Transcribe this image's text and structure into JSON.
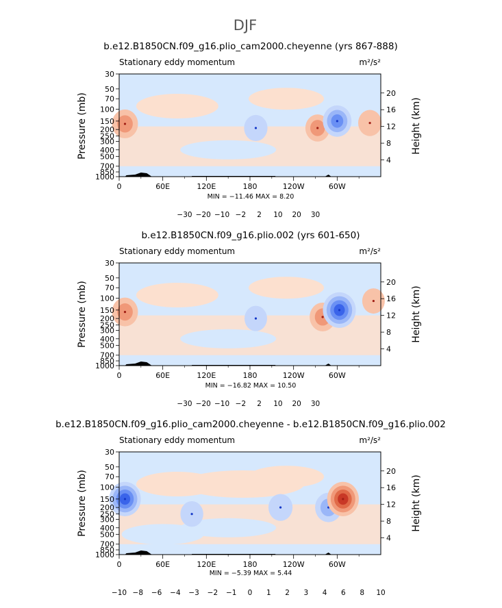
{
  "page_title": "DJF",
  "colors": {
    "blues": [
      "#0a1a6e",
      "#1538c8",
      "#3a64ea",
      "#6a90f4",
      "#9ab6f8",
      "#c4d6fb",
      "#d6e8fd"
    ],
    "reds": [
      "#fce0cf",
      "#f8c2a8",
      "#f09878",
      "#e06a48",
      "#c83826",
      "#a01e14",
      "#6e0a08"
    ],
    "terrain": "#000000"
  },
  "chart_data": [
    {
      "type": "heatmap",
      "title": "b.e12.B1850CN.f09_g16.plio_cam2000.cheyenne (yrs 867-888)",
      "left_string": "Stationary eddy momentum",
      "units": "m²/s²",
      "ylabel": "Pressure  (mb)",
      "ylabel_right": "Height  (km)",
      "pressure_ticks": [
        "30",
        "50",
        "70",
        "100",
        "150",
        "200",
        "250",
        "300",
        "400",
        "500",
        "700",
        "850",
        "1000"
      ],
      "height_ticks": [
        "20",
        "16",
        "12",
        "8",
        "4"
      ],
      "x_ticks": [
        "0",
        "60E",
        "120E",
        "180",
        "120W",
        "60W"
      ],
      "min_max": "MIN = −11.46   MAX =   8.20",
      "colorbar_labels": [
        "−30",
        "−20",
        "−10",
        "−2",
        "2",
        "10",
        "20",
        "30"
      ],
      "features": [
        {
          "lon": 8,
          "p": 165,
          "value": 8,
          "sign": "pos"
        },
        {
          "lon": 188,
          "p": 190,
          "value": -5,
          "sign": "neg"
        },
        {
          "lon": 273,
          "p": 190,
          "value": 6,
          "sign": "pos"
        },
        {
          "lon": 300,
          "p": 150,
          "value": -11,
          "sign": "neg"
        },
        {
          "lon": 345,
          "p": 160,
          "value": 5,
          "sign": "pos"
        }
      ]
    },
    {
      "type": "heatmap",
      "title": "b.e12.B1850CN.f09_g16.plio.002 (yrs 601-650)",
      "left_string": "Stationary eddy momentum",
      "units": "m²/s²",
      "ylabel": "Pressure  (mb)",
      "ylabel_right": "Height  (km)",
      "pressure_ticks": [
        "30",
        "50",
        "70",
        "100",
        "150",
        "200",
        "250",
        "300",
        "400",
        "500",
        "700",
        "850",
        "1000"
      ],
      "height_ticks": [
        "20",
        "16",
        "12",
        "8",
        "4"
      ],
      "x_ticks": [
        "0",
        "60E",
        "120E",
        "180",
        "120W",
        "60W"
      ],
      "min_max": "MIN = −16.82   MAX =   10.50",
      "colorbar_labels": [
        "−30",
        "−20",
        "−10",
        "−2",
        "2",
        "10",
        "20",
        "30"
      ],
      "features": [
        {
          "lon": 8,
          "p": 160,
          "value": 8,
          "sign": "pos"
        },
        {
          "lon": 188,
          "p": 200,
          "value": -4,
          "sign": "neg"
        },
        {
          "lon": 280,
          "p": 190,
          "value": 8,
          "sign": "pos"
        },
        {
          "lon": 303,
          "p": 150,
          "value": -16,
          "sign": "neg"
        },
        {
          "lon": 350,
          "p": 110,
          "value": 4,
          "sign": "pos"
        }
      ]
    },
    {
      "type": "heatmap",
      "title": "b.e12.B1850CN.f09_g16.plio_cam2000.cheyenne - b.e12.B1850CN.f09_g16.plio.002",
      "left_string": "Stationary eddy momentum",
      "units": "m²/s²",
      "ylabel": "Pressure  (mb)",
      "ylabel_right": "Height  (km)",
      "pressure_ticks": [
        "30",
        "50",
        "70",
        "100",
        "150",
        "200",
        "250",
        "300",
        "400",
        "500",
        "700",
        "850",
        "1000"
      ],
      "height_ticks": [
        "20",
        "16",
        "12",
        "8",
        "4"
      ],
      "x_ticks": [
        "0",
        "60E",
        "120E",
        "180",
        "120W",
        "60W"
      ],
      "min_max": "MIN = −5.39   MAX =   5.44",
      "colorbar_labels": [
        "−10",
        "−8",
        "−6",
        "−4",
        "−3",
        "−2",
        "−1",
        "0",
        "1",
        "2",
        "3",
        "4",
        "6",
        "8",
        "10"
      ],
      "features": [
        {
          "lon": 8,
          "p": 150,
          "value": -5,
          "sign": "neg"
        },
        {
          "lon": 100,
          "p": 250,
          "value": -1.5,
          "sign": "neg"
        },
        {
          "lon": 222,
          "p": 200,
          "value": -2,
          "sign": "neg"
        },
        {
          "lon": 288,
          "p": 200,
          "value": -3,
          "sign": "neg"
        },
        {
          "lon": 308,
          "p": 150,
          "value": 5,
          "sign": "pos"
        }
      ]
    }
  ]
}
